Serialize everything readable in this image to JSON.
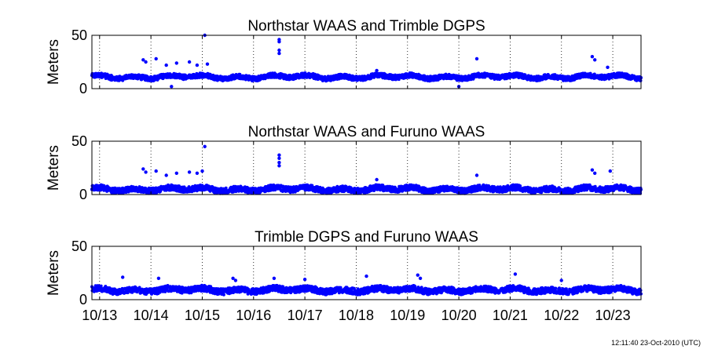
{
  "footer_timestamp": "12:11:40 23-Oct-2010 (UTC)",
  "chart_data": [
    {
      "type": "scatter",
      "title": "Northstar WAAS and Trimble DGPS",
      "ylabel": "Meters",
      "ylim": [
        0,
        50
      ],
      "yticks": [
        "0",
        "50"
      ],
      "grid": "vertical dotted at day boundaries",
      "marker_color": "#0000ff",
      "baseline": 11,
      "noise": 2.2,
      "spikes": [
        {
          "x": 13.85,
          "y": 27
        },
        {
          "x": 13.9,
          "y": 25
        },
        {
          "x": 14.1,
          "y": 28
        },
        {
          "x": 14.3,
          "y": 22
        },
        {
          "x": 14.5,
          "y": 24
        },
        {
          "x": 14.75,
          "y": 25
        },
        {
          "x": 14.9,
          "y": 22
        },
        {
          "x": 15.05,
          "y": 50
        },
        {
          "x": 15.1,
          "y": 23
        },
        {
          "x": 16.5,
          "y": 46
        },
        {
          "x": 16.5,
          "y": 44
        },
        {
          "x": 16.5,
          "y": 36
        },
        {
          "x": 16.5,
          "y": 33
        },
        {
          "x": 18.4,
          "y": 17
        },
        {
          "x": 20.35,
          "y": 28
        },
        {
          "x": 22.6,
          "y": 30
        },
        {
          "x": 22.65,
          "y": 27
        },
        {
          "x": 22.9,
          "y": 20
        },
        {
          "x": 14.4,
          "y": 2
        },
        {
          "x": 20.0,
          "y": 2
        }
      ]
    },
    {
      "type": "scatter",
      "title": "Northstar WAAS and Furuno WAAS",
      "ylabel": "Meters",
      "ylim": [
        0,
        50
      ],
      "yticks": [
        "0",
        "50"
      ],
      "grid": "vertical dotted at day boundaries",
      "marker_color": "#0000ff",
      "baseline": 5,
      "noise": 2.6,
      "spikes": [
        {
          "x": 13.85,
          "y": 24
        },
        {
          "x": 13.9,
          "y": 21
        },
        {
          "x": 14.1,
          "y": 22
        },
        {
          "x": 14.3,
          "y": 18
        },
        {
          "x": 14.5,
          "y": 20
        },
        {
          "x": 14.75,
          "y": 21
        },
        {
          "x": 14.9,
          "y": 20
        },
        {
          "x": 15.05,
          "y": 45
        },
        {
          "x": 15.0,
          "y": 22
        },
        {
          "x": 16.5,
          "y": 37
        },
        {
          "x": 16.5,
          "y": 34
        },
        {
          "x": 16.5,
          "y": 30
        },
        {
          "x": 16.5,
          "y": 27
        },
        {
          "x": 18.4,
          "y": 14
        },
        {
          "x": 20.35,
          "y": 18
        },
        {
          "x": 22.6,
          "y": 23
        },
        {
          "x": 22.65,
          "y": 20
        },
        {
          "x": 22.95,
          "y": 22
        }
      ]
    },
    {
      "type": "scatter",
      "title": "Trimble DGPS and Furuno WAAS",
      "ylabel": "Meters",
      "ylim": [
        0,
        50
      ],
      "yticks": [
        "0",
        "50"
      ],
      "grid": "vertical dotted at day boundaries",
      "marker_color": "#0000ff",
      "baseline": 9,
      "noise": 2.8,
      "spikes": [
        {
          "x": 13.45,
          "y": 21
        },
        {
          "x": 14.15,
          "y": 20
        },
        {
          "x": 15.6,
          "y": 20
        },
        {
          "x": 15.65,
          "y": 18
        },
        {
          "x": 16.4,
          "y": 20
        },
        {
          "x": 17.0,
          "y": 19
        },
        {
          "x": 18.2,
          "y": 22
        },
        {
          "x": 19.2,
          "y": 23
        },
        {
          "x": 19.25,
          "y": 20
        },
        {
          "x": 21.1,
          "y": 24
        },
        {
          "x": 22.0,
          "y": 18
        }
      ]
    }
  ],
  "x_axis": {
    "range": [
      12.85,
      23.55
    ],
    "ticks": [
      {
        "x": 13,
        "label": "10/13"
      },
      {
        "x": 14,
        "label": "10/14"
      },
      {
        "x": 15,
        "label": "10/15"
      },
      {
        "x": 16,
        "label": "10/16"
      },
      {
        "x": 17,
        "label": "10/17"
      },
      {
        "x": 18,
        "label": "10/18"
      },
      {
        "x": 19,
        "label": "10/19"
      },
      {
        "x": 20,
        "label": "10/20"
      },
      {
        "x": 21,
        "label": "10/21"
      },
      {
        "x": 22,
        "label": "10/22"
      },
      {
        "x": 23,
        "label": "10/23"
      }
    ]
  }
}
